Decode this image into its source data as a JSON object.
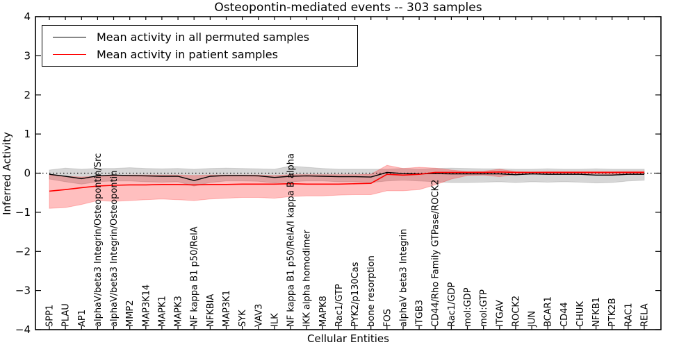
{
  "figure": {
    "title": "Osteopontin-mediated events -- 303 samples",
    "xlabel": "Cellular Entities",
    "ylabel": "Inferred Activity"
  },
  "chart_data": {
    "type": "line",
    "title": "Osteopontin-mediated events -- 303 samples",
    "xlabel": "Cellular Entities",
    "ylabel": "Inferred Activity",
    "ylim": [
      -4,
      4
    ],
    "yticks": [
      4,
      3,
      2,
      1,
      0,
      -1,
      -2,
      -3,
      -4
    ],
    "grid": false,
    "zero_line": "black dotted at y=0",
    "legend_position": "upper left",
    "categories": [
      "SPP1",
      "PLAU",
      "AP1",
      "alphaV/beta3 Integrin/Osteopontin/Src",
      "alphaV/beta3 Integrin/Osteopontin",
      "MMP2",
      "MAP3K14",
      "MAPK1",
      "MAPK3",
      "NF kappa B1 p50/RelA",
      "NFKBIA",
      "MAP3K1",
      "SYK",
      "VAV3",
      "ILK",
      "NF kappa B1 p50/RelA/I kappa B alpha",
      "IKK alpha homodimer",
      "MAPK8",
      "Rac1/GTP",
      "PYK2/p130Cas",
      "bone resorption",
      "FOS",
      "alphaV beta3 Integrin",
      "ITGB3",
      "CD44/Rho Family GTPase/ROCK2",
      "Rac1/GDP",
      "mol:GDP",
      "mol:GTP",
      "ITGAV",
      "ROCK2",
      "JUN",
      "BCAR1",
      "CD44",
      "CHUK",
      "NFKB1",
      "PTK2B",
      "RAC1",
      "RELA"
    ],
    "series": [
      {
        "name": "Mean activity in all permuted samples",
        "color": "#000000",
        "style": "solid",
        "values": [
          -0.03,
          -0.08,
          -0.14,
          -0.07,
          -0.05,
          -0.06,
          -0.07,
          -0.08,
          -0.08,
          -0.19,
          -0.08,
          -0.06,
          -0.06,
          -0.07,
          -0.11,
          -0.08,
          -0.07,
          -0.08,
          -0.09,
          -0.09,
          -0.1,
          0.02,
          -0.01,
          -0.02,
          -0.01,
          -0.02,
          -0.02,
          -0.02,
          -0.02,
          -0.04,
          -0.02,
          -0.03,
          -0.03,
          -0.03,
          -0.05,
          -0.05,
          -0.03,
          -0.03
        ],
        "band": {
          "upper": [
            0.08,
            0.13,
            0.1,
            0.12,
            0.12,
            0.14,
            0.12,
            0.11,
            0.12,
            0.1,
            0.12,
            0.13,
            0.12,
            0.11,
            0.1,
            0.18,
            0.15,
            0.12,
            0.1,
            0.1,
            0.1,
            0.1,
            0.12,
            0.1,
            0.12,
            0.13,
            0.12,
            0.11,
            0.11,
            0.1,
            0.1,
            0.11,
            0.1,
            0.1,
            0.11,
            0.1,
            0.1,
            0.1
          ],
          "lower": [
            -0.15,
            -0.22,
            -0.28,
            -0.22,
            -0.2,
            -0.2,
            -0.22,
            -0.23,
            -0.22,
            -0.33,
            -0.24,
            -0.2,
            -0.2,
            -0.21,
            -0.25,
            -0.22,
            -0.2,
            -0.2,
            -0.22,
            -0.22,
            -0.24,
            -0.2,
            -0.18,
            -0.2,
            -0.22,
            -0.24,
            -0.24,
            -0.23,
            -0.22,
            -0.24,
            -0.22,
            -0.23,
            -0.22,
            -0.23,
            -0.25,
            -0.24,
            -0.2,
            -0.18
          ],
          "color": "#808080",
          "opacity": 0.32
        }
      },
      {
        "name": "Mean activity in patient samples",
        "color": "#ff0000",
        "style": "solid",
        "values": [
          -0.46,
          -0.42,
          -0.37,
          -0.33,
          -0.31,
          -0.3,
          -0.3,
          -0.29,
          -0.29,
          -0.3,
          -0.29,
          -0.29,
          -0.28,
          -0.28,
          -0.28,
          -0.27,
          -0.28,
          -0.28,
          -0.28,
          -0.27,
          -0.26,
          -0.03,
          -0.05,
          -0.03,
          0.02,
          0.02,
          0.02,
          0.02,
          0.03,
          0.02,
          0.02,
          0.02,
          0.02,
          0.02,
          0.02,
          0.02,
          0.02,
          0.02
        ],
        "band": {
          "upper": [
            -0.04,
            -0.08,
            -0.1,
            -0.08,
            -0.06,
            -0.05,
            -0.05,
            -0.05,
            -0.05,
            -0.06,
            -0.05,
            -0.05,
            -0.05,
            -0.05,
            -0.06,
            -0.04,
            -0.04,
            -0.04,
            -0.04,
            -0.04,
            -0.03,
            0.2,
            0.12,
            0.15,
            0.13,
            0.08,
            0.04,
            0.05,
            0.1,
            0.04,
            0.03,
            0.04,
            0.04,
            0.04,
            0.04,
            0.04,
            0.05,
            0.05
          ],
          "lower": [
            -0.9,
            -0.88,
            -0.8,
            -0.7,
            -0.72,
            -0.7,
            -0.68,
            -0.66,
            -0.68,
            -0.7,
            -0.66,
            -0.64,
            -0.62,
            -0.62,
            -0.64,
            -0.6,
            -0.58,
            -0.58,
            -0.56,
            -0.55,
            -0.55,
            -0.45,
            -0.45,
            -0.42,
            -0.3,
            -0.15,
            -0.06,
            -0.05,
            -0.09,
            -0.03,
            -0.02,
            -0.02,
            -0.02,
            -0.02,
            -0.02,
            -0.03,
            -0.02,
            -0.02
          ],
          "color": "#ff0000",
          "opacity": 0.25
        }
      }
    ]
  }
}
